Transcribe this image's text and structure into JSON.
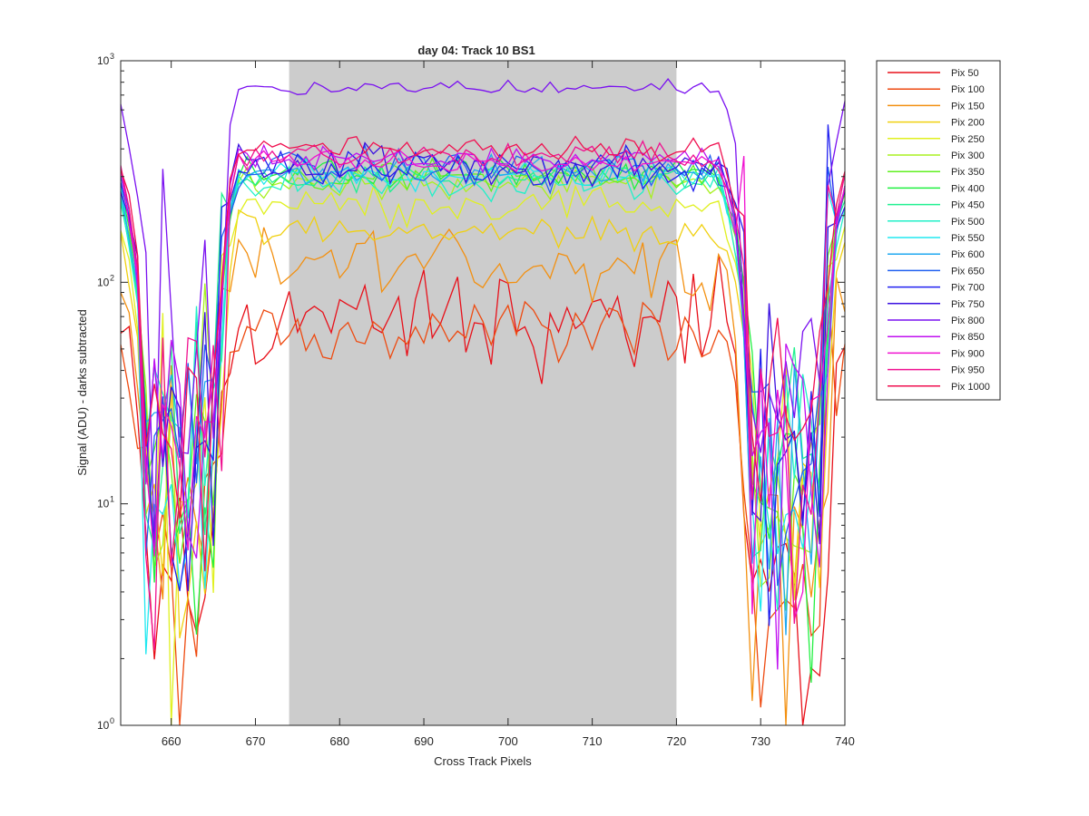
{
  "chart_data": {
    "type": "line",
    "title": "day 04: Track 10  BS1",
    "xlabel": "Cross Track Pixels",
    "ylabel": "Signal (ADU) - darks subtracted",
    "xlim": [
      654,
      740
    ],
    "ylim": [
      1,
      1000
    ],
    "yscale": "log",
    "x_ticks": [
      660,
      670,
      680,
      690,
      700,
      710,
      720,
      730,
      740
    ],
    "y_ticks": [
      {
        "value": 1,
        "base": "10",
        "exp": "0"
      },
      {
        "value": 10,
        "base": "10",
        "exp": "1"
      },
      {
        "value": 100,
        "base": "10",
        "exp": "2"
      },
      {
        "value": 1000,
        "base": "10",
        "exp": "3"
      }
    ],
    "shaded_region": {
      "x_start": 674,
      "x_end": 720,
      "color": "#cccccc"
    },
    "legend_position": "outside-top-right",
    "series": [
      {
        "name": "Pix 50",
        "color": "#e8101a",
        "level": 68,
        "noise": 0.22
      },
      {
        "name": "Pix 100",
        "color": "#ee4a10",
        "level": 62,
        "noise": 0.13
      },
      {
        "name": "Pix 150",
        "color": "#f39010",
        "level": 122,
        "noise": 0.14
      },
      {
        "name": "Pix 200",
        "color": "#f0d010",
        "level": 168,
        "noise": 0.07
      },
      {
        "name": "Pix 250",
        "color": "#e0f020",
        "level": 225,
        "noise": 0.07
      },
      {
        "name": "Pix 300",
        "color": "#a8f020",
        "level": 282,
        "noise": 0.06
      },
      {
        "name": "Pix 350",
        "color": "#60f020",
        "level": 300,
        "noise": 0.06
      },
      {
        "name": "Pix 400",
        "color": "#20f040",
        "level": 310,
        "noise": 0.06
      },
      {
        "name": "Pix 450",
        "color": "#20f090",
        "level": 290,
        "noise": 0.06
      },
      {
        "name": "Pix 500",
        "color": "#20f0c8",
        "level": 275,
        "noise": 0.07
      },
      {
        "name": "Pix 550",
        "color": "#20e8f0",
        "level": 305,
        "noise": 0.06
      },
      {
        "name": "Pix 600",
        "color": "#20a8f0",
        "level": 320,
        "noise": 0.06
      },
      {
        "name": "Pix 650",
        "color": "#2060f0",
        "level": 325,
        "noise": 0.07
      },
      {
        "name": "Pix 700",
        "color": "#2020f0",
        "level": 335,
        "noise": 0.08
      },
      {
        "name": "Pix 750",
        "color": "#3a10e0",
        "level": 340,
        "noise": 0.08
      },
      {
        "name": "Pix 800",
        "color": "#7a10f0",
        "level": 760,
        "noise": 0.03
      },
      {
        "name": "Pix 850",
        "color": "#c010f0",
        "level": 360,
        "noise": 0.05
      },
      {
        "name": "Pix 900",
        "color": "#f010d0",
        "level": 345,
        "noise": 0.05
      },
      {
        "name": "Pix 950",
        "color": "#f01090",
        "level": 370,
        "noise": 0.05
      },
      {
        "name": "Pix 1000",
        "color": "#f01050",
        "level": 410,
        "noise": 0.05
      }
    ]
  }
}
